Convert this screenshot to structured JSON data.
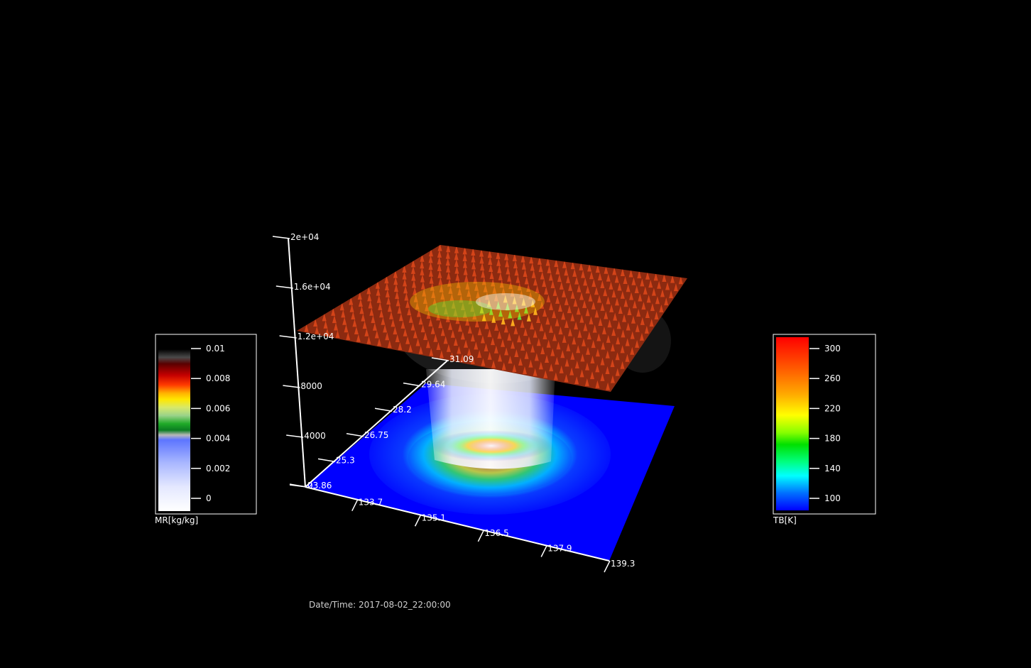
{
  "chart_data": {
    "type": "3d-volume",
    "z_axis": {
      "ticks": [
        "2e+04",
        "1.6e+04",
        "1.2e+04",
        "8000",
        "4000",
        "0"
      ]
    },
    "y_axis": {
      "ticks": [
        "31.09",
        "29.64",
        "28.2",
        "26.75",
        "25.3",
        "23.86"
      ]
    },
    "x_axis": {
      "ticks": [
        "133.7",
        "135.1",
        "136.5",
        "137.9",
        "139.3"
      ]
    },
    "colorbar_mr": {
      "label": "MR[kg/kg]",
      "ticks": [
        "0.01",
        "0.008",
        "0.006",
        "0.004",
        "0.002",
        "0"
      ]
    },
    "colorbar_tb": {
      "label": "TB[K]",
      "ticks": [
        "300",
        "260",
        "220",
        "180",
        "140",
        "100"
      ]
    }
  },
  "footer": {
    "datetime_label": "Date/Time:",
    "datetime_value": "2017-08-02_22:00:00"
  }
}
